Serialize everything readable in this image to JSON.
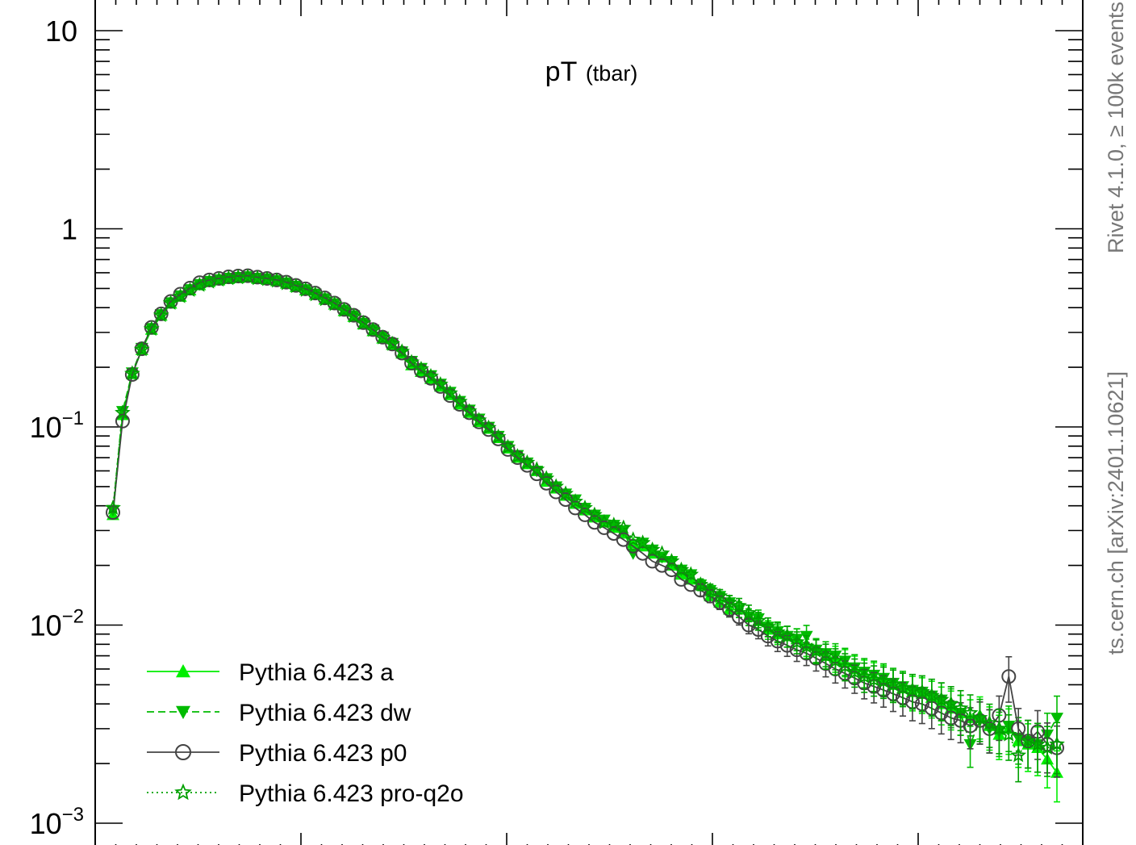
{
  "chart_data": {
    "type": "line",
    "title": "pT",
    "title_sub": "(tbar)",
    "xlabel": "",
    "ylabel": "",
    "yscale": "log",
    "ylim": [
      0.001,
      12
    ],
    "xlim": [
      0,
      100
    ],
    "y_tick_labels": [
      {
        "base": "10",
        "exp": "",
        "value": 10
      },
      {
        "base": "1",
        "exp": "",
        "value": 1
      },
      {
        "base": "10",
        "exp": "−1",
        "value": 0.1
      },
      {
        "base": "10",
        "exp": "−2",
        "value": 0.01
      },
      {
        "base": "10",
        "exp": "−3",
        "value": 0.001
      }
    ],
    "side_labels": {
      "right_top": "Rivet 4.1.0, ≥ 100k events",
      "right_bottom": "ts.cern.ch [arXiv:2401.10621]"
    },
    "legend_position": "bottom-left",
    "x": [
      1,
      2,
      3,
      4,
      5,
      6,
      7,
      8,
      9,
      10,
      11,
      12,
      13,
      14,
      15,
      16,
      17,
      18,
      19,
      20,
      21,
      22,
      23,
      24,
      25,
      26,
      27,
      28,
      29,
      30,
      31,
      32,
      33,
      34,
      35,
      36,
      37,
      38,
      39,
      40,
      41,
      42,
      43,
      44,
      45,
      46,
      47,
      48,
      49,
      50,
      51,
      52,
      53,
      54,
      55,
      56,
      57,
      58,
      59,
      60,
      61,
      62,
      63,
      64,
      65,
      66,
      67,
      68,
      69,
      70,
      71,
      72,
      73,
      74,
      75,
      76,
      77,
      78,
      79,
      80,
      81,
      82,
      83,
      84,
      85,
      86,
      87,
      88,
      89,
      90,
      91,
      92,
      93,
      94,
      95,
      96,
      97,
      98,
      99
    ],
    "series": [
      {
        "name": "Pythia 6.423 a",
        "color": "#00ee00",
        "dash": "solid",
        "marker": "triangle-up",
        "values": [
          0.036,
          0.115,
          0.185,
          0.245,
          0.31,
          0.365,
          0.42,
          0.455,
          0.49,
          0.52,
          0.54,
          0.55,
          0.56,
          0.565,
          0.57,
          0.56,
          0.555,
          0.545,
          0.53,
          0.51,
          0.49,
          0.465,
          0.44,
          0.415,
          0.385,
          0.36,
          0.33,
          0.305,
          0.28,
          0.26,
          0.235,
          0.205,
          0.19,
          0.175,
          0.16,
          0.145,
          0.13,
          0.118,
          0.106,
          0.098,
          0.088,
          0.078,
          0.07,
          0.065,
          0.06,
          0.053,
          0.049,
          0.045,
          0.041,
          0.038,
          0.035,
          0.033,
          0.031,
          0.029,
          0.026,
          0.025,
          0.023,
          0.022,
          0.02,
          0.018,
          0.017,
          0.016,
          0.014,
          0.013,
          0.012,
          0.012,
          0.011,
          0.0105,
          0.0095,
          0.009,
          0.0088,
          0.0085,
          0.008,
          0.0075,
          0.007,
          0.0068,
          0.0065,
          0.006,
          0.0057,
          0.0055,
          0.0053,
          0.005,
          0.0048,
          0.0046,
          0.0045,
          0.0043,
          0.004,
          0.0038,
          0.0036,
          0.0034,
          0.0035,
          0.0031,
          0.0028,
          0.003,
          0.0026,
          0.0025,
          0.0024,
          0.0021,
          0.0018
        ]
      },
      {
        "name": "Pythia 6.423 dw",
        "color": "#00bb00",
        "dash": "dashed",
        "marker": "triangle-down",
        "values": [
          0.038,
          0.12,
          0.188,
          0.25,
          0.315,
          0.37,
          0.425,
          0.46,
          0.495,
          0.525,
          0.545,
          0.555,
          0.565,
          0.57,
          0.575,
          0.565,
          0.56,
          0.55,
          0.535,
          0.515,
          0.495,
          0.47,
          0.445,
          0.42,
          0.39,
          0.365,
          0.335,
          0.31,
          0.285,
          0.265,
          0.24,
          0.215,
          0.198,
          0.182,
          0.165,
          0.15,
          0.135,
          0.122,
          0.11,
          0.1,
          0.09,
          0.08,
          0.072,
          0.066,
          0.06,
          0.055,
          0.05,
          0.046,
          0.043,
          0.039,
          0.036,
          0.034,
          0.032,
          0.03,
          0.023,
          0.026,
          0.024,
          0.022,
          0.021,
          0.019,
          0.018,
          0.016,
          0.015,
          0.014,
          0.013,
          0.012,
          0.011,
          0.0108,
          0.0098,
          0.0093,
          0.0088,
          0.0085,
          0.0088,
          0.0075,
          0.0072,
          0.007,
          0.0066,
          0.0061,
          0.0058,
          0.0056,
          0.0054,
          0.0051,
          0.0049,
          0.0047,
          0.0046,
          0.0044,
          0.0042,
          0.0039,
          0.0036,
          0.0025,
          0.0033,
          0.003,
          0.0029,
          0.0031,
          0.0027,
          0.0026,
          0.0025,
          0.0028,
          0.0034
        ]
      },
      {
        "name": "Pythia 6.423 p0",
        "color": "#444444",
        "dash": "solid",
        "marker": "circle-open",
        "values": [
          0.037,
          0.107,
          0.184,
          0.248,
          0.318,
          0.372,
          0.43,
          0.468,
          0.502,
          0.535,
          0.552,
          0.562,
          0.572,
          0.578,
          0.58,
          0.57,
          0.562,
          0.552,
          0.538,
          0.518,
          0.498,
          0.474,
          0.448,
          0.422,
          0.392,
          0.366,
          0.336,
          0.31,
          0.284,
          0.262,
          0.236,
          0.21,
          0.192,
          0.176,
          0.16,
          0.144,
          0.13,
          0.118,
          0.106,
          0.097,
          0.087,
          0.077,
          0.07,
          0.064,
          0.058,
          0.052,
          0.047,
          0.043,
          0.039,
          0.036,
          0.033,
          0.031,
          0.029,
          0.027,
          0.025,
          0.023,
          0.021,
          0.02,
          0.019,
          0.017,
          0.016,
          0.015,
          0.014,
          0.013,
          0.012,
          0.011,
          0.01,
          0.0095,
          0.0088,
          0.0083,
          0.0079,
          0.0075,
          0.0072,
          0.0068,
          0.0064,
          0.006,
          0.0057,
          0.0054,
          0.0051,
          0.0049,
          0.0047,
          0.0045,
          0.0043,
          0.0041,
          0.004,
          0.0038,
          0.0036,
          0.0034,
          0.0033,
          0.0031,
          0.0033,
          0.003,
          0.0035,
          0.0055,
          0.003,
          0.0026,
          0.0029,
          0.0025,
          0.0024
        ]
      },
      {
        "name": "Pythia 6.423 pro-q2o",
        "color": "#00a000",
        "dash": "dotted",
        "marker": "star-open",
        "values": [
          0.039,
          0.118,
          0.186,
          0.246,
          0.312,
          0.366,
          0.422,
          0.456,
          0.49,
          0.52,
          0.54,
          0.552,
          0.562,
          0.568,
          0.572,
          0.562,
          0.556,
          0.546,
          0.53,
          0.512,
          0.49,
          0.466,
          0.44,
          0.416,
          0.388,
          0.362,
          0.334,
          0.308,
          0.282,
          0.262,
          0.24,
          0.212,
          0.196,
          0.18,
          0.164,
          0.148,
          0.134,
          0.12,
          0.108,
          0.099,
          0.089,
          0.079,
          0.071,
          0.066,
          0.061,
          0.055,
          0.05,
          0.046,
          0.042,
          0.039,
          0.036,
          0.033,
          0.032,
          0.031,
          0.027,
          0.026,
          0.024,
          0.023,
          0.021,
          0.019,
          0.018,
          0.016,
          0.015,
          0.014,
          0.013,
          0.0125,
          0.0115,
          0.0105,
          0.0098,
          0.0092,
          0.0088,
          0.0082,
          0.0078,
          0.0074,
          0.007,
          0.0066,
          0.0062,
          0.0058,
          0.0055,
          0.0053,
          0.0052,
          0.005,
          0.0048,
          0.0047,
          0.0046,
          0.0044,
          0.0042,
          0.004,
          0.0038,
          0.0036,
          0.0034,
          0.0032,
          0.003,
          0.0028,
          0.0022,
          0.0026,
          0.0025,
          0.0024,
          0.0025
        ]
      }
    ]
  }
}
